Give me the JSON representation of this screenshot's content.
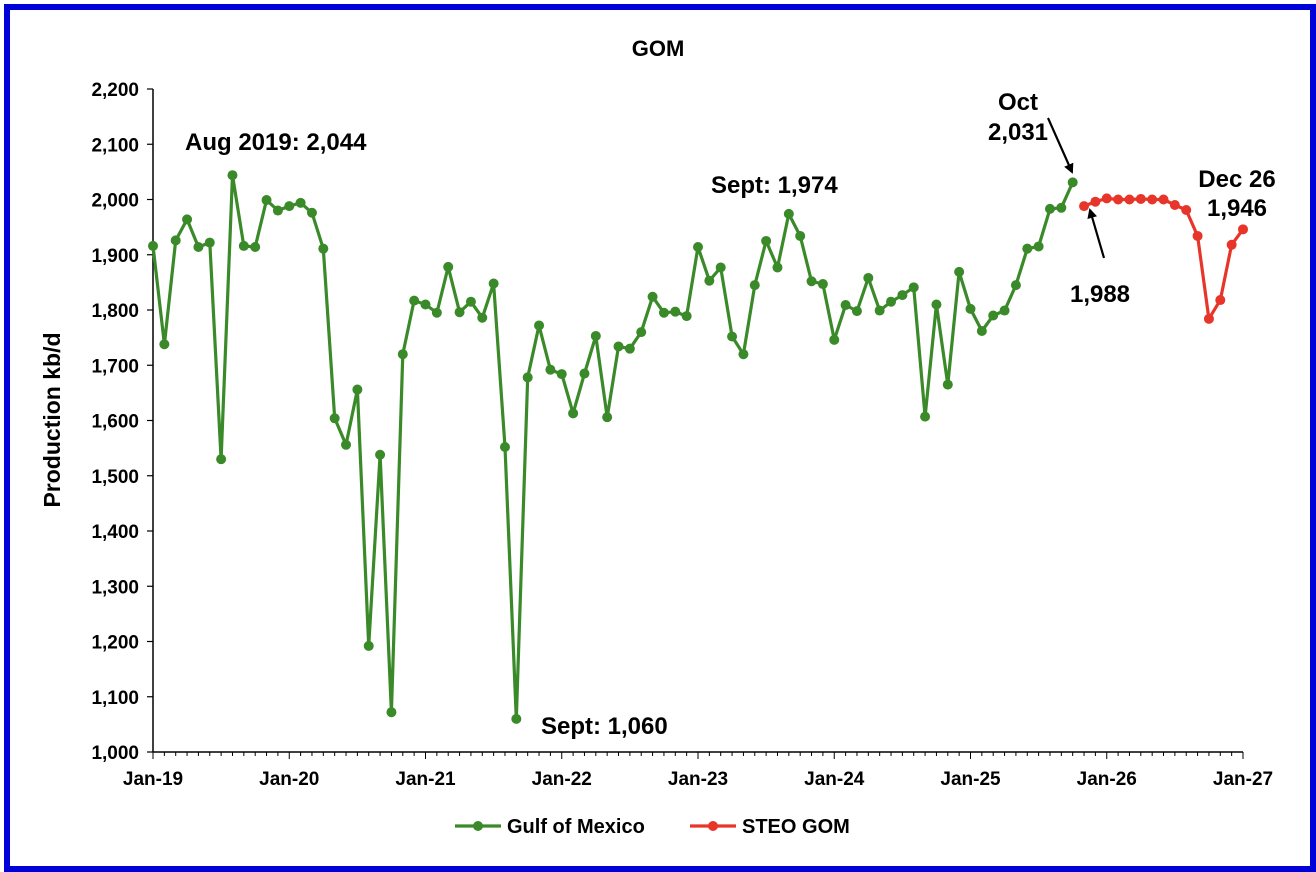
{
  "chart_data": {
    "type": "line",
    "title": "GOM",
    "xlabel": "",
    "ylabel": "Production kb/d",
    "ylim": [
      1000,
      2200
    ],
    "yticks": [
      "1,000",
      "1,100",
      "1,200",
      "1,300",
      "1,400",
      "1,500",
      "1,600",
      "1,700",
      "1,800",
      "1,900",
      "2,000",
      "2,100",
      "2,200"
    ],
    "xticks": [
      "Jan-19",
      "Jan-20",
      "Jan-21",
      "Jan-22",
      "Jan-23",
      "Jan-24",
      "Jan-25",
      "Jan-26",
      "Jan-27"
    ],
    "xlim": [
      "2019-01",
      "2027-01"
    ],
    "grid": false,
    "legend": "bottom",
    "series": [
      {
        "name": "Gulf of Mexico",
        "color": "#3a8a2a",
        "points": [
          [
            "2019-01",
            1916
          ],
          [
            "2019-02",
            1738
          ],
          [
            "2019-03",
            1926
          ],
          [
            "2019-04",
            1964
          ],
          [
            "2019-05",
            1914
          ],
          [
            "2019-06",
            1922
          ],
          [
            "2019-07",
            1530
          ],
          [
            "2019-08",
            2044
          ],
          [
            "2019-09",
            1916
          ],
          [
            "2019-10",
            1914
          ],
          [
            "2019-11",
            1999
          ],
          [
            "2019-12",
            1980
          ],
          [
            "2020-01",
            1988
          ],
          [
            "2020-02",
            1994
          ],
          [
            "2020-03",
            1976
          ],
          [
            "2020-04",
            1911
          ],
          [
            "2020-05",
            1604
          ],
          [
            "2020-06",
            1556
          ],
          [
            "2020-07",
            1656
          ],
          [
            "2020-08",
            1192
          ],
          [
            "2020-09",
            1538
          ],
          [
            "2020-10",
            1072
          ],
          [
            "2020-11",
            1720
          ],
          [
            "2020-12",
            1817
          ],
          [
            "2021-01",
            1810
          ],
          [
            "2021-02",
            1795
          ],
          [
            "2021-03",
            1878
          ],
          [
            "2021-04",
            1796
          ],
          [
            "2021-05",
            1815
          ],
          [
            "2021-06",
            1786
          ],
          [
            "2021-07",
            1848
          ],
          [
            "2021-08",
            1552
          ],
          [
            "2021-09",
            1060
          ],
          [
            "2021-10",
            1678
          ],
          [
            "2021-11",
            1772
          ],
          [
            "2021-12",
            1692
          ],
          [
            "2022-01",
            1684
          ],
          [
            "2022-02",
            1613
          ],
          [
            "2022-03",
            1685
          ],
          [
            "2022-04",
            1753
          ],
          [
            "2022-05",
            1606
          ],
          [
            "2022-06",
            1734
          ],
          [
            "2022-07",
            1730
          ],
          [
            "2022-08",
            1760
          ],
          [
            "2022-09",
            1824
          ],
          [
            "2022-10",
            1795
          ],
          [
            "2022-11",
            1797
          ],
          [
            "2022-12",
            1789
          ],
          [
            "2023-01",
            1914
          ],
          [
            "2023-02",
            1853
          ],
          [
            "2023-03",
            1877
          ],
          [
            "2023-04",
            1752
          ],
          [
            "2023-05",
            1720
          ],
          [
            "2023-06",
            1845
          ],
          [
            "2023-07",
            1925
          ],
          [
            "2023-08",
            1877
          ],
          [
            "2023-09",
            1974
          ],
          [
            "2023-10",
            1934
          ],
          [
            "2023-11",
            1852
          ],
          [
            "2023-12",
            1847
          ],
          [
            "2024-01",
            1746
          ],
          [
            "2024-02",
            1809
          ],
          [
            "2024-03",
            1798
          ],
          [
            "2024-04",
            1858
          ],
          [
            "2024-05",
            1799
          ],
          [
            "2024-06",
            1815
          ],
          [
            "2024-07",
            1827
          ],
          [
            "2024-08",
            1841
          ],
          [
            "2024-09",
            1607
          ],
          [
            "2024-10",
            1810
          ],
          [
            "2024-11",
            1665
          ],
          [
            "2024-12",
            1869
          ],
          [
            "2025-01",
            1802
          ],
          [
            "2025-02",
            1762
          ],
          [
            "2025-03",
            1790
          ],
          [
            "2025-04",
            1799
          ],
          [
            "2025-05",
            1845
          ],
          [
            "2025-06",
            1911
          ],
          [
            "2025-07",
            1915
          ],
          [
            "2025-08",
            1983
          ],
          [
            "2025-09",
            1985
          ],
          [
            "2025-10",
            2031
          ]
        ]
      },
      {
        "name": "STEO GOM",
        "color": "#e8352a",
        "points": [
          [
            "2025-11",
            1988
          ],
          [
            "2025-12",
            1996
          ],
          [
            "2026-01",
            2002
          ],
          [
            "2026-02",
            2000
          ],
          [
            "2026-03",
            2000
          ],
          [
            "2026-04",
            2001
          ],
          [
            "2026-05",
            2000
          ],
          [
            "2026-06",
            2000
          ],
          [
            "2026-07",
            1990
          ],
          [
            "2026-08",
            1981
          ],
          [
            "2026-09",
            1934
          ],
          [
            "2026-10",
            1784
          ],
          [
            "2026-11",
            1818
          ],
          [
            "2026-12",
            1918
          ],
          [
            "2027-01",
            1946
          ]
        ]
      }
    ],
    "annotations": [
      {
        "text": "Aug 2019: 2,044"
      },
      {
        "text": "Sept: 1,974"
      },
      {
        "text": "Sept: 1,060"
      },
      {
        "text": "Oct"
      },
      {
        "text": "2,031"
      },
      {
        "text": "1,988"
      },
      {
        "text": "Dec 26"
      },
      {
        "text": "1,946"
      }
    ]
  },
  "colors": {
    "frame": "#0000d8",
    "arrow": "#000000"
  }
}
